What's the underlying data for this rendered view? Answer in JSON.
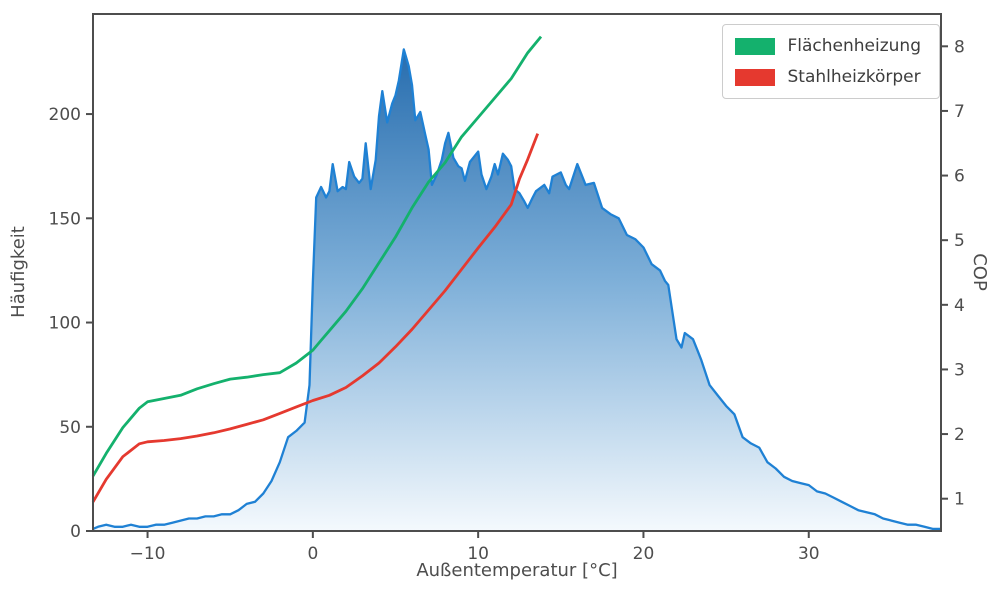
{
  "chart_data": {
    "type": "area",
    "title": "",
    "xlabel": "Außentemperatur [°C]",
    "ylabel_left": "Häufigkeit",
    "ylabel_right": "COP",
    "xlim": [
      -13.3,
      38
    ],
    "ylim_left": [
      0,
      248
    ],
    "ylim_right": [
      0.5,
      8.5
    ],
    "grid": false,
    "legend_position": "top-right",
    "x_ticks": [
      {
        "v": -10,
        "label": "−10"
      },
      {
        "v": 0,
        "label": "0"
      },
      {
        "v": 10,
        "label": "10"
      },
      {
        "v": 20,
        "label": "20"
      },
      {
        "v": 30,
        "label": "30"
      }
    ],
    "y_ticks_left": [
      {
        "v": 0,
        "label": "0"
      },
      {
        "v": 50,
        "label": "50"
      },
      {
        "v": 100,
        "label": "100"
      },
      {
        "v": 150,
        "label": "150"
      },
      {
        "v": 200,
        "label": "200"
      }
    ],
    "y_ticks_right": [
      {
        "v": 1,
        "label": "1"
      },
      {
        "v": 2,
        "label": "2"
      },
      {
        "v": 3,
        "label": "3"
      },
      {
        "v": 4,
        "label": "4"
      },
      {
        "v": 5,
        "label": "5"
      },
      {
        "v": 6,
        "label": "6"
      },
      {
        "v": 7,
        "label": "7"
      },
      {
        "v": 8,
        "label": "8"
      }
    ],
    "histogram": {
      "name": "Häufigkeit",
      "axis": "left",
      "color": "#1f81d4",
      "fill_top": "#1a63a8",
      "fill_mid": "#7fb0d9",
      "fill_bottom": "#f4f9fd",
      "points": [
        [
          -13.3,
          1
        ],
        [
          -13,
          2
        ],
        [
          -12.5,
          3
        ],
        [
          -12,
          2
        ],
        [
          -11.5,
          2
        ],
        [
          -11,
          3
        ],
        [
          -10.5,
          2
        ],
        [
          -10,
          2
        ],
        [
          -9.5,
          3
        ],
        [
          -9,
          3
        ],
        [
          -8.5,
          4
        ],
        [
          -8,
          5
        ],
        [
          -7.5,
          6
        ],
        [
          -7,
          6
        ],
        [
          -6.5,
          7
        ],
        [
          -6,
          7
        ],
        [
          -5.5,
          8
        ],
        [
          -5,
          8
        ],
        [
          -4.5,
          10
        ],
        [
          -4,
          13
        ],
        [
          -3.5,
          14
        ],
        [
          -3,
          18
        ],
        [
          -2.5,
          24
        ],
        [
          -2,
          33
        ],
        [
          -1.5,
          45
        ],
        [
          -1,
          48
        ],
        [
          -0.5,
          52
        ],
        [
          -0.2,
          70
        ],
        [
          0,
          120
        ],
        [
          0.2,
          160
        ],
        [
          0.5,
          165
        ],
        [
          0.8,
          160
        ],
        [
          1,
          163
        ],
        [
          1.2,
          176
        ],
        [
          1.5,
          163
        ],
        [
          1.8,
          165
        ],
        [
          2,
          164
        ],
        [
          2.2,
          177
        ],
        [
          2.5,
          170
        ],
        [
          2.8,
          167
        ],
        [
          3,
          169
        ],
        [
          3.2,
          186
        ],
        [
          3.5,
          164
        ],
        [
          3.8,
          178
        ],
        [
          4,
          199
        ],
        [
          4.2,
          211
        ],
        [
          4.5,
          196
        ],
        [
          4.8,
          205
        ],
        [
          5,
          209
        ],
        [
          5.2,
          216
        ],
        [
          5.5,
          231
        ],
        [
          5.8,
          223
        ],
        [
          6,
          214
        ],
        [
          6.2,
          197
        ],
        [
          6.5,
          201
        ],
        [
          6.8,
          190
        ],
        [
          7,
          183
        ],
        [
          7.2,
          166
        ],
        [
          7.5,
          171
        ],
        [
          7.8,
          178
        ],
        [
          8,
          186
        ],
        [
          8.2,
          191
        ],
        [
          8.5,
          179
        ],
        [
          8.8,
          175
        ],
        [
          9,
          174
        ],
        [
          9.2,
          168
        ],
        [
          9.5,
          177
        ],
        [
          9.8,
          180
        ],
        [
          10,
          182
        ],
        [
          10.2,
          171
        ],
        [
          10.5,
          164
        ],
        [
          10.8,
          170
        ],
        [
          11,
          176
        ],
        [
          11.2,
          171
        ],
        [
          11.5,
          181
        ],
        [
          11.8,
          178
        ],
        [
          12,
          175
        ],
        [
          12.2,
          164
        ],
        [
          12.5,
          162
        ],
        [
          12.8,
          158
        ],
        [
          13,
          155
        ],
        [
          13.3,
          160
        ],
        [
          13.5,
          163
        ],
        [
          14,
          166
        ],
        [
          14.3,
          162
        ],
        [
          14.5,
          170
        ],
        [
          15,
          172
        ],
        [
          15.3,
          166
        ],
        [
          15.5,
          164
        ],
        [
          16,
          176
        ],
        [
          16.3,
          170
        ],
        [
          16.5,
          166
        ],
        [
          17,
          167
        ],
        [
          17.5,
          155
        ],
        [
          18,
          152
        ],
        [
          18.5,
          150
        ],
        [
          19,
          142
        ],
        [
          19.5,
          140
        ],
        [
          20,
          136
        ],
        [
          20.5,
          128
        ],
        [
          21,
          125
        ],
        [
          21.3,
          120
        ],
        [
          21.5,
          118
        ],
        [
          22,
          92
        ],
        [
          22.3,
          88
        ],
        [
          22.5,
          95
        ],
        [
          23,
          92
        ],
        [
          23.3,
          86
        ],
        [
          23.5,
          82
        ],
        [
          24,
          70
        ],
        [
          24.5,
          65
        ],
        [
          25,
          60
        ],
        [
          25.5,
          56
        ],
        [
          26,
          45
        ],
        [
          26.5,
          42
        ],
        [
          27,
          40
        ],
        [
          27.5,
          33
        ],
        [
          28,
          30
        ],
        [
          28.5,
          26
        ],
        [
          29,
          24
        ],
        [
          29.5,
          23
        ],
        [
          30,
          22
        ],
        [
          30.5,
          19
        ],
        [
          31,
          18
        ],
        [
          31.5,
          16
        ],
        [
          32,
          14
        ],
        [
          32.5,
          12
        ],
        [
          33,
          10
        ],
        [
          33.5,
          9
        ],
        [
          34,
          8
        ],
        [
          34.5,
          6
        ],
        [
          35,
          5
        ],
        [
          35.5,
          4
        ],
        [
          36,
          3
        ],
        [
          36.5,
          3
        ],
        [
          37,
          2
        ],
        [
          37.5,
          1
        ],
        [
          38,
          1
        ]
      ]
    },
    "series": [
      {
        "name": "Flächenheizung",
        "axis": "right",
        "color": "#14b16d",
        "points": [
          [
            -13.3,
            1.35
          ],
          [
            -12.5,
            1.7
          ],
          [
            -11.5,
            2.1
          ],
          [
            -10.5,
            2.4
          ],
          [
            -10,
            2.5
          ],
          [
            -9,
            2.55
          ],
          [
            -8,
            2.6
          ],
          [
            -7,
            2.7
          ],
          [
            -6,
            2.78
          ],
          [
            -5,
            2.85
          ],
          [
            -4,
            2.88
          ],
          [
            -3,
            2.92
          ],
          [
            -2,
            2.95
          ],
          [
            -1,
            3.1
          ],
          [
            0,
            3.3
          ],
          [
            0.5,
            3.45
          ],
          [
            1,
            3.6
          ],
          [
            2,
            3.9
          ],
          [
            3,
            4.25
          ],
          [
            4,
            4.65
          ],
          [
            5,
            5.05
          ],
          [
            6,
            5.5
          ],
          [
            7,
            5.9
          ],
          [
            8,
            6.2
          ],
          [
            9,
            6.6
          ],
          [
            10,
            6.9
          ],
          [
            11,
            7.2
          ],
          [
            12,
            7.5
          ],
          [
            13,
            7.9
          ],
          [
            13.8,
            8.15
          ]
        ]
      },
      {
        "name": "Stahlheizkörper",
        "axis": "right",
        "color": "#e5392f",
        "points": [
          [
            -13.3,
            0.95
          ],
          [
            -12.5,
            1.3
          ],
          [
            -11.5,
            1.65
          ],
          [
            -10.5,
            1.85
          ],
          [
            -10,
            1.88
          ],
          [
            -9,
            1.9
          ],
          [
            -8,
            1.93
          ],
          [
            -7,
            1.97
          ],
          [
            -6,
            2.02
          ],
          [
            -5,
            2.08
          ],
          [
            -4,
            2.15
          ],
          [
            -3,
            2.22
          ],
          [
            -2,
            2.32
          ],
          [
            -1,
            2.42
          ],
          [
            0,
            2.52
          ],
          [
            1,
            2.6
          ],
          [
            2,
            2.72
          ],
          [
            3,
            2.9
          ],
          [
            4,
            3.1
          ],
          [
            5,
            3.35
          ],
          [
            6,
            3.62
          ],
          [
            7,
            3.92
          ],
          [
            8,
            4.22
          ],
          [
            9,
            4.55
          ],
          [
            10,
            4.88
          ],
          [
            11,
            5.2
          ],
          [
            12,
            5.55
          ],
          [
            12.5,
            5.95
          ],
          [
            13,
            6.25
          ],
          [
            13.6,
            6.65
          ]
        ]
      }
    ]
  }
}
